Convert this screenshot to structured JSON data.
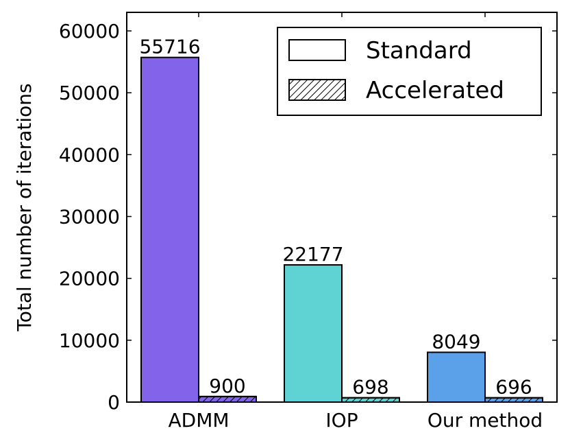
{
  "chart_data": {
    "type": "bar",
    "categories": [
      "ADMM",
      "IOP",
      "Our method"
    ],
    "series": [
      {
        "name": "Standard",
        "values": [
          55716,
          22177,
          8049
        ],
        "pattern": "solid"
      },
      {
        "name": "Accelerated",
        "values": [
          900,
          698,
          696
        ],
        "pattern": "hatch"
      }
    ],
    "data_labels": [
      [
        "55716",
        "22177",
        "8049"
      ],
      [
        "900",
        "698",
        "696"
      ]
    ],
    "category_colors": [
      "#8263ea",
      "#5fd3d3",
      "#5aa1ea"
    ],
    "ylabel": "Total number of iterations",
    "ylim": [
      0,
      63000
    ],
    "yticks": [
      0,
      10000,
      20000,
      30000,
      40000,
      50000,
      60000
    ],
    "ytick_labels": [
      "0",
      "10000",
      "20000",
      "30000",
      "40000",
      "50000",
      "60000"
    ],
    "legend": {
      "placement": "top-right",
      "entries": [
        "Standard",
        "Accelerated"
      ]
    },
    "grid": false
  }
}
